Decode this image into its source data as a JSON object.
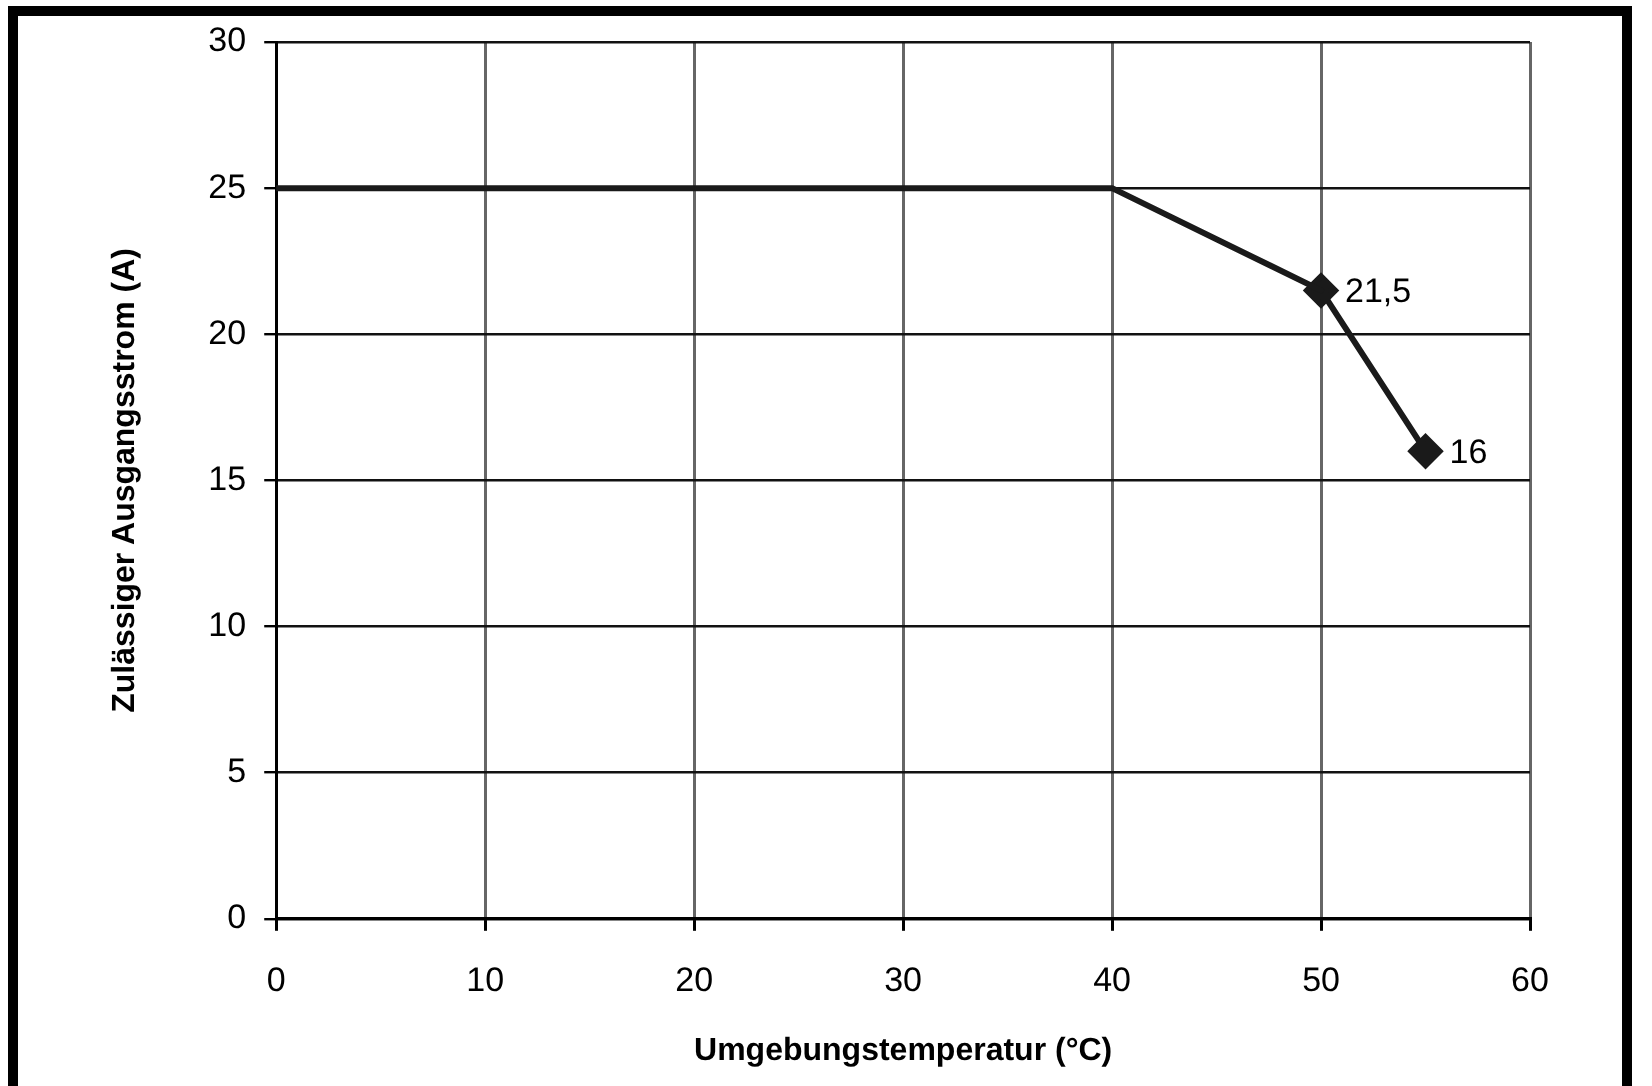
{
  "chart_data": {
    "type": "line",
    "xlabel": "Umgebungstemperatur (°C)",
    "ylabel": "Zulässiger Ausgangsstrom (A)",
    "series": [
      {
        "color": "#1a1a1a",
        "x": [
          0,
          40,
          50
        ],
        "values": [
          25,
          25,
          21.5
        ],
        "marker": "none"
      },
      {
        "color": "#1a1a1a",
        "x": [
          50,
          55
        ],
        "values": [
          21.5,
          16
        ],
        "marker": "diamond",
        "value_labels": [
          "21,5",
          "16"
        ]
      }
    ],
    "xlim": [
      0,
      60
    ],
    "xticks": [
      0,
      10,
      20,
      30,
      40,
      50,
      60
    ],
    "ylim": [
      0,
      30
    ],
    "yticks": [
      0,
      5,
      10,
      15,
      20,
      25,
      30
    ],
    "grid": true,
    "legend": false
  }
}
